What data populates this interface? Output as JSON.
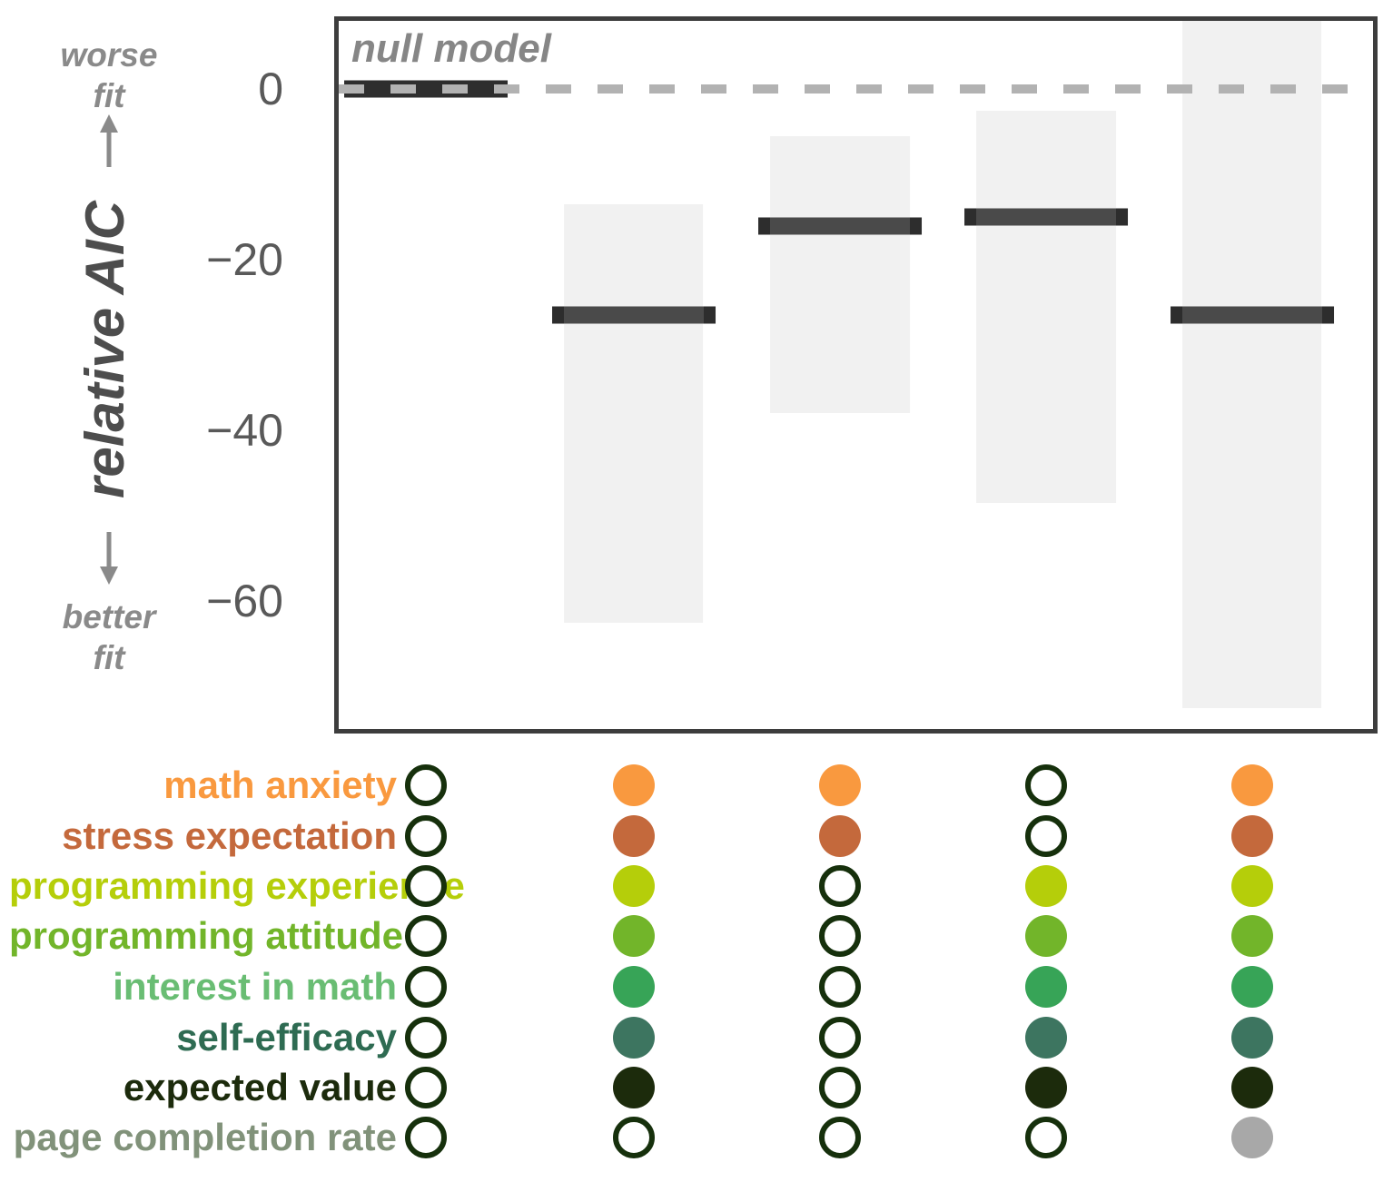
{
  "figure": {
    "null_model_label": "null model",
    "y_axis": {
      "label": "relative AIC",
      "worse_line1": "worse",
      "worse_line2": "fit",
      "better_line1": "better",
      "better_line2": "fit",
      "ticks": [
        "0",
        "−20",
        "−40",
        "−60"
      ],
      "tick_values": [
        0,
        -20,
        -40,
        -60
      ]
    }
  },
  "chart_data": {
    "type": "interval",
    "title": "",
    "xlabel": "",
    "ylabel": "relative AIC",
    "ylim": [
      -75,
      8
    ],
    "grid": false,
    "zero_line": {
      "value": 0,
      "style": "dashed",
      "label": "null model"
    },
    "models": [
      {
        "label": "null model",
        "aic": 0,
        "ci": null
      },
      {
        "aic": -26.5,
        "ci": [
          -13.5,
          -62.5
        ]
      },
      {
        "aic": -16,
        "ci": [
          -5.5,
          -38
        ]
      },
      {
        "aic": -15,
        "ci": [
          -2.5,
          -48.5
        ]
      },
      {
        "aic": -26.5,
        "ci": [
          8,
          -72.5
        ]
      }
    ]
  },
  "predictors": [
    {
      "label": "math anxiety",
      "label_color": "#f9993f",
      "dot_color": "#f9993f",
      "included": [
        false,
        true,
        true,
        false,
        true
      ]
    },
    {
      "label": "stress expectation",
      "label_color": "#c4693c",
      "dot_color": "#c4693c",
      "included": [
        false,
        true,
        true,
        false,
        true
      ]
    },
    {
      "label": "programming experience",
      "label_color": "#b5ce0a",
      "dot_color": "#b5ce0a",
      "included": [
        false,
        true,
        false,
        true,
        true
      ]
    },
    {
      "label": "programming attitude",
      "label_color": "#72b52a",
      "dot_color": "#72b52a",
      "included": [
        false,
        true,
        false,
        true,
        true
      ]
    },
    {
      "label": "interest in math",
      "label_color": "#69bd73",
      "dot_color": "#37a457",
      "included": [
        false,
        true,
        false,
        true,
        true
      ]
    },
    {
      "label": "self-efficacy",
      "label_color": "#2e6b52",
      "dot_color": "#3d7560",
      "included": [
        false,
        true,
        false,
        true,
        true
      ]
    },
    {
      "label": "expected value",
      "label_color": "#1c2b0c",
      "dot_color": "#1c2b0c",
      "included": [
        false,
        true,
        false,
        true,
        true
      ]
    },
    {
      "label": "page completion rate",
      "label_color": "#81927a",
      "dot_color": "#a8a8a8",
      "included": [
        false,
        false,
        false,
        false,
        true
      ]
    }
  ],
  "colors": {
    "plot_border": "#3d3d3d",
    "bar_mid": "#4a4a4a",
    "bar_cap": "#2d2d2d",
    "null_bar": "#2e2e2e",
    "ci_fill": "#f1f1f1",
    "dashed_line": "#b2b2b2",
    "tick_text": "#595959",
    "annotation_text": "#8a8a8a",
    "circle_outline": "#16300c"
  }
}
